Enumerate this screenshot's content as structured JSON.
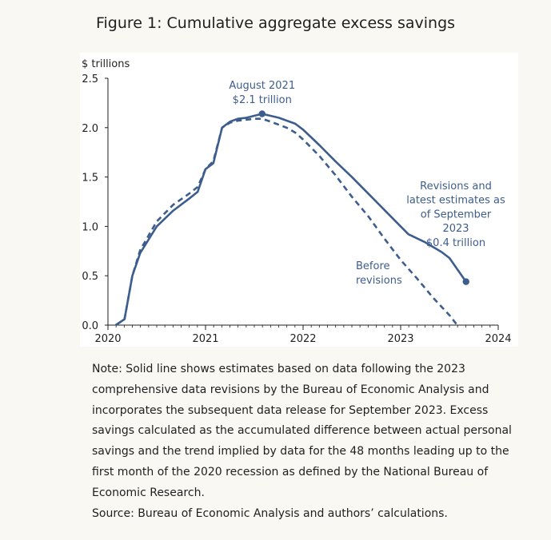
{
  "title": "Figure 1: Cumulative aggregate excess savings",
  "chart_data": {
    "type": "line",
    "title": "Figure 1: Cumulative aggregate excess savings",
    "ylabel": "$ trillions",
    "xlabel": "",
    "ylim": [
      0,
      2.5
    ],
    "xlim": [
      2020,
      2024
    ],
    "yticks": [
      "0.0",
      "0.5",
      "1.0",
      "1.5",
      "2.0",
      "2.5"
    ],
    "xticks": [
      "2020",
      "2021",
      "2022",
      "2023",
      "2024"
    ],
    "grid": false,
    "series": [
      {
        "name": "Revisions and latest estimates as of September 2023",
        "style": "solid",
        "points": [
          [
            2020.08,
            0.0
          ],
          [
            2020.17,
            0.06
          ],
          [
            2020.25,
            0.5
          ],
          [
            2020.33,
            0.73
          ],
          [
            2020.5,
            1.0
          ],
          [
            2020.67,
            1.16
          ],
          [
            2020.83,
            1.28
          ],
          [
            2020.92,
            1.35
          ],
          [
            2021.0,
            1.58
          ],
          [
            2021.08,
            1.64
          ],
          [
            2021.17,
            2.0
          ],
          [
            2021.25,
            2.06
          ],
          [
            2021.33,
            2.09
          ],
          [
            2021.42,
            2.1
          ],
          [
            2021.58,
            2.14
          ],
          [
            2021.75,
            2.1
          ],
          [
            2021.92,
            2.04
          ],
          [
            2022.0,
            1.98
          ],
          [
            2022.17,
            1.82
          ],
          [
            2022.33,
            1.66
          ],
          [
            2022.5,
            1.5
          ],
          [
            2022.67,
            1.33
          ],
          [
            2022.83,
            1.17
          ],
          [
            2023.0,
            1.0
          ],
          [
            2023.08,
            0.92
          ],
          [
            2023.25,
            0.84
          ],
          [
            2023.42,
            0.74
          ],
          [
            2023.5,
            0.68
          ],
          [
            2023.67,
            0.44
          ]
        ]
      },
      {
        "name": "Before revisions",
        "style": "dashed",
        "points": [
          [
            2020.08,
            0.0
          ],
          [
            2020.17,
            0.06
          ],
          [
            2020.25,
            0.5
          ],
          [
            2020.33,
            0.76
          ],
          [
            2020.5,
            1.05
          ],
          [
            2020.67,
            1.22
          ],
          [
            2020.83,
            1.33
          ],
          [
            2020.92,
            1.4
          ],
          [
            2021.0,
            1.58
          ],
          [
            2021.08,
            1.66
          ],
          [
            2021.17,
            2.0
          ],
          [
            2021.25,
            2.05
          ],
          [
            2021.33,
            2.07
          ],
          [
            2021.5,
            2.09
          ],
          [
            2021.58,
            2.09
          ],
          [
            2021.67,
            2.06
          ],
          [
            2021.83,
            2.0
          ],
          [
            2021.92,
            1.95
          ],
          [
            2022.0,
            1.88
          ],
          [
            2022.17,
            1.71
          ],
          [
            2022.33,
            1.52
          ],
          [
            2022.5,
            1.3
          ],
          [
            2022.67,
            1.1
          ],
          [
            2022.83,
            0.88
          ],
          [
            2023.0,
            0.66
          ],
          [
            2023.17,
            0.47
          ],
          [
            2023.33,
            0.28
          ],
          [
            2023.5,
            0.1
          ],
          [
            2023.58,
            0.0
          ]
        ]
      }
    ],
    "markers": [
      {
        "name": "peak",
        "x": 2021.58,
        "y": 2.14
      },
      {
        "name": "latest",
        "x": 2023.67,
        "y": 0.44
      }
    ],
    "annotations": {
      "peak_label_line1": "August 2021",
      "peak_label_line2": "$2.1 trillion",
      "latest_label_lines": [
        "Revisions and",
        "latest estimates as",
        "of September",
        "2023",
        "$0.4 trillion"
      ],
      "before_label_line1": "Before",
      "before_label_line2": "revisions"
    },
    "colors": {
      "series": "#3d5d8c",
      "annotation_text": "#3d5d8c",
      "axis": "#1f1f1f"
    }
  },
  "note": {
    "text": "Note: Solid line shows estimates based on data following the 2023 comprehensive data revisions by the Bureau of Economic Analysis and incorporates the subsequent data release for September 2023. Excess savings calculated as the accumulated difference between actual personal savings and the trend implied by data for the 48 months leading up to the first month of the 2020 recession as defined by the National Bureau of Economic Research.",
    "source": "Source: Bureau of Economic Analysis and authors’ calculations."
  }
}
